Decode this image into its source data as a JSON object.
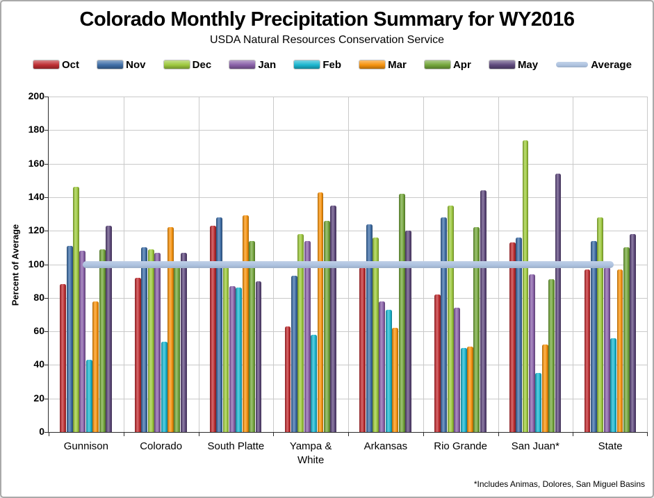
{
  "title": "Colorado Monthly Precipitation Summary for WY2016",
  "subtitle": "USDA Natural Resources Conservation Service",
  "footnote": "*Includes Animas, Dolores, San Miguel Basins",
  "chart_data": {
    "type": "bar",
    "title": "Colorado Monthly Precipitation Summary for WY2016",
    "subtitle": "USDA Natural Resources Conservation Service",
    "ylabel": "Percent of Average",
    "xlabel": "",
    "ylim": [
      0,
      200
    ],
    "ytick_step": 20,
    "grid": true,
    "legend_position": "top",
    "categories": [
      "Gunnison",
      "Colorado",
      "South Platte",
      "Yampa & White",
      "Arkansas",
      "Rio Grande",
      "San Juan*",
      "State"
    ],
    "series": [
      {
        "name": "Oct",
        "color": "#be2f33",
        "values": [
          88,
          92,
          123,
          63,
          98,
          82,
          113,
          97
        ]
      },
      {
        "name": "Nov",
        "color": "#3f6ea6",
        "values": [
          111,
          110,
          128,
          93,
          124,
          128,
          116,
          114
        ]
      },
      {
        "name": "Dec",
        "color": "#9dc83e",
        "values": [
          146,
          109,
          102,
          118,
          116,
          135,
          174,
          128
        ]
      },
      {
        "name": "Jan",
        "color": "#8961a8",
        "values": [
          108,
          107,
          87,
          114,
          78,
          74,
          94,
          98
        ]
      },
      {
        "name": "Feb",
        "color": "#1cb6cf",
        "values": [
          43,
          54,
          86,
          58,
          73,
          50,
          35,
          56
        ]
      },
      {
        "name": "Mar",
        "color": "#f6930f",
        "values": [
          78,
          122,
          129,
          143,
          62,
          51,
          52,
          97
        ]
      },
      {
        "name": "Apr",
        "color": "#74a63c",
        "values": [
          109,
          100,
          114,
          126,
          142,
          122,
          91,
          110
        ]
      },
      {
        "name": "May",
        "color": "#5f4a7d",
        "values": [
          123,
          107,
          90,
          135,
          120,
          144,
          154,
          118
        ]
      }
    ],
    "average_line": {
      "name": "Average",
      "value": 100,
      "color": "#aec3e0"
    }
  }
}
